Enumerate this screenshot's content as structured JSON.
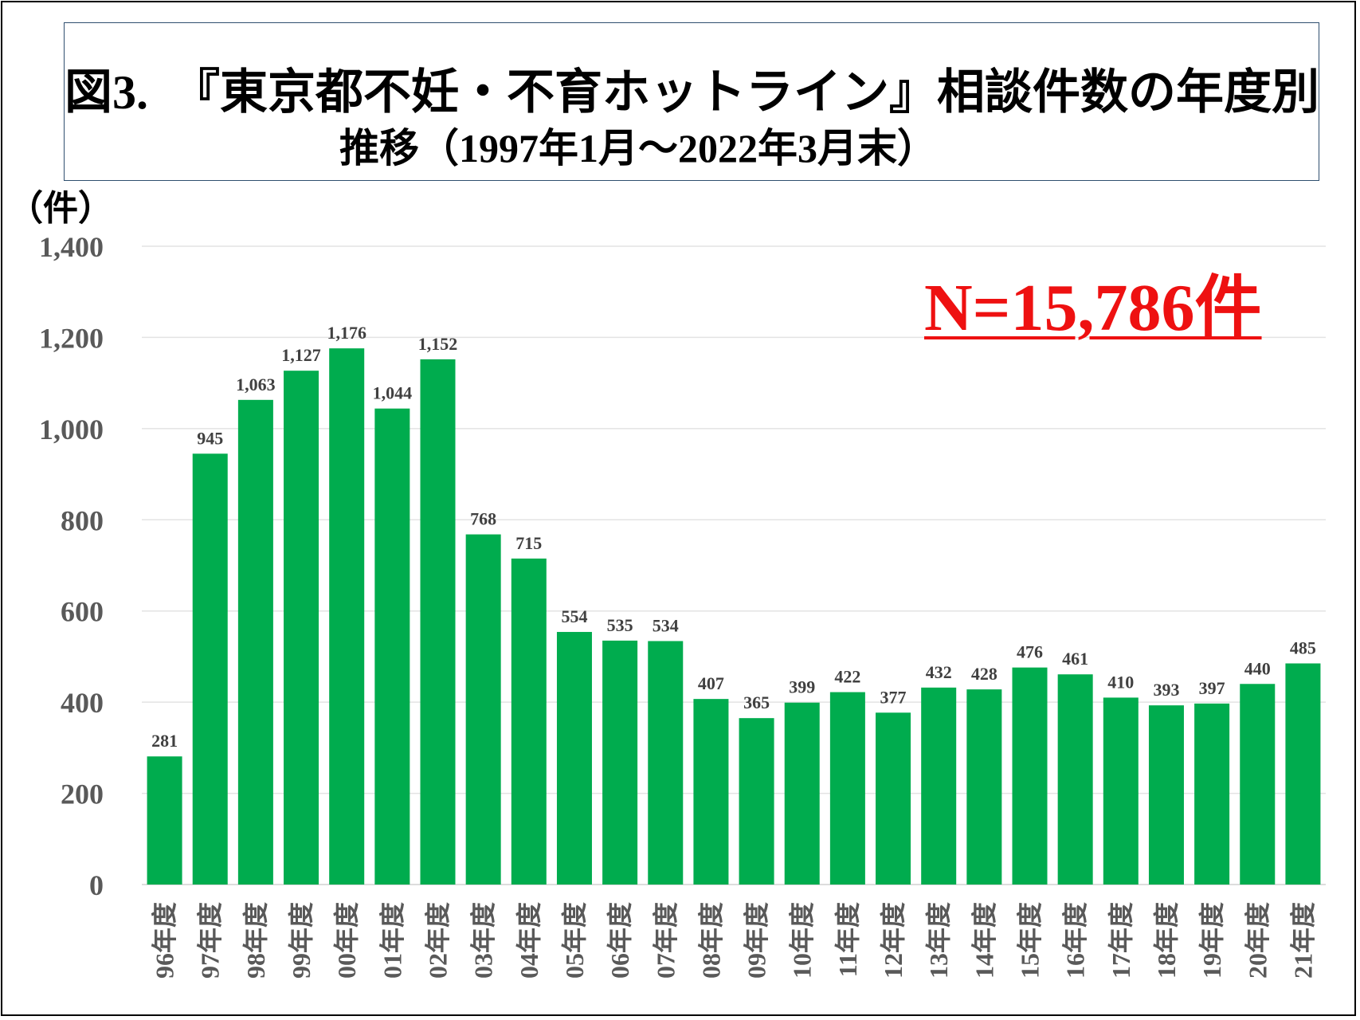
{
  "chart_data": {
    "type": "bar",
    "title": "図3.　『東京都不妊・不育ホットライン』相談件数の年度別",
    "subtitle": "推移（1997年1月～2022年3月末）",
    "ylabel": "（件）",
    "annotation": "N=15,786件",
    "ylim": [
      0,
      1400
    ],
    "yticks": [
      "0",
      "200",
      "400",
      "600",
      "800",
      "1,000",
      "1,200",
      "1,400"
    ],
    "ytick_values": [
      0,
      200,
      400,
      600,
      800,
      1000,
      1200,
      1400
    ],
    "categories": [
      "96年度",
      "97年度",
      "98年度",
      "99年度",
      "00年度",
      "01年度",
      "02年度",
      "03年度",
      "04年度",
      "05年度",
      "06年度",
      "07年度",
      "08年度",
      "09年度",
      "10年度",
      "11年度",
      "12年度",
      "13年度",
      "14年度",
      "15年度",
      "16年度",
      "17年度",
      "18年度",
      "19年度",
      "20年度",
      "21年度"
    ],
    "values": [
      281,
      945,
      1063,
      1127,
      1176,
      1044,
      1152,
      768,
      715,
      554,
      535,
      534,
      407,
      365,
      399,
      422,
      377,
      432,
      428,
      476,
      461,
      410,
      393,
      397,
      440,
      485
    ],
    "value_labels": [
      "281",
      "945",
      "1,063",
      "1,127",
      "1,176",
      "1,044",
      "1,152",
      "768",
      "715",
      "554",
      "535",
      "534",
      "407",
      "365",
      "399",
      "422",
      "377",
      "432",
      "428",
      "476",
      "461",
      "410",
      "393",
      "397",
      "440",
      "485"
    ],
    "grid": true,
    "bar_color": "#00AC4E",
    "annotation_color": "#EE1111"
  }
}
